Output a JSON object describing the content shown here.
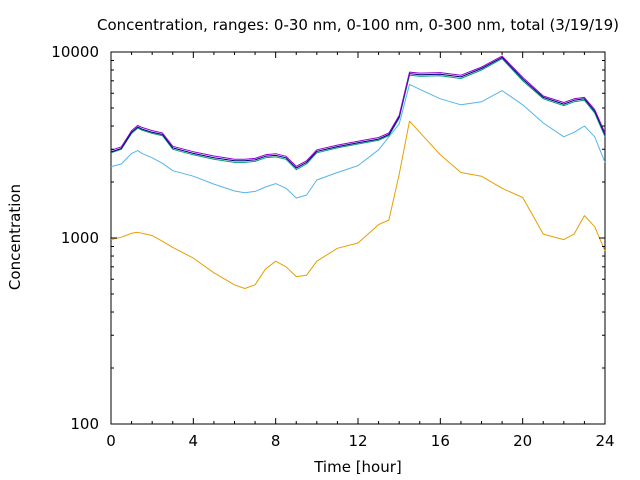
{
  "chart_data": {
    "type": "line",
    "title": "Concentration, ranges: 0-30 nm, 0-100 nm, 0-300 nm, total (3/19/19)",
    "xlabel": "Time [hour]",
    "ylabel": "Concentration",
    "xlim": [
      0,
      24
    ],
    "ylim": [
      100,
      10000
    ],
    "yscale": "log",
    "xticks": [
      0,
      4,
      8,
      12,
      16,
      20,
      24
    ],
    "xtick_labels": [
      "0",
      "4",
      "8",
      "12",
      "16",
      "20",
      "24"
    ],
    "yticks": [
      100,
      1000,
      10000
    ],
    "ytick_labels": [
      "100",
      "1000",
      "10000"
    ],
    "grid": false,
    "legend": "none",
    "x": [
      0,
      0.5,
      1,
      1.3,
      1.5,
      2,
      2.5,
      3,
      4,
      5,
      6,
      6.5,
      7,
      7.5,
      8,
      8.5,
      9,
      9.5,
      10,
      11,
      12,
      13,
      13.5,
      14,
      14.5,
      15,
      16,
      17,
      18,
      19,
      20,
      21,
      22,
      22.5,
      23,
      23.5,
      24
    ],
    "series": [
      {
        "color": "#e69f00",
        "values": [
          980,
          1010,
          1060,
          1075,
          1060,
          1030,
          960,
          890,
          780,
          650,
          560,
          535,
          560,
          680,
          750,
          700,
          620,
          630,
          750,
          880,
          940,
          1180,
          1250,
          2200,
          4250,
          3700,
          2800,
          2250,
          2150,
          1850,
          1650,
          1050,
          980,
          1050,
          1320,
          1150,
          850
        ]
      },
      {
        "color": "#56b4e9",
        "values": [
          2420,
          2500,
          2850,
          2950,
          2850,
          2700,
          2520,
          2300,
          2150,
          1950,
          1790,
          1750,
          1780,
          1880,
          1960,
          1850,
          1640,
          1700,
          2050,
          2250,
          2450,
          2980,
          3500,
          4100,
          6700,
          6300,
          5600,
          5200,
          5400,
          6200,
          5200,
          4150,
          3500,
          3700,
          4000,
          3500,
          2550
        ]
      },
      {
        "color": "#009e73",
        "values": [
          2870,
          3000,
          3650,
          3900,
          3800,
          3650,
          3550,
          3000,
          2800,
          2650,
          2550,
          2550,
          2580,
          2700,
          2730,
          2650,
          2330,
          2500,
          2870,
          3050,
          3200,
          3350,
          3550,
          4400,
          7500,
          7400,
          7450,
          7200,
          8000,
          9200,
          7000,
          5600,
          5150,
          5400,
          5500,
          4700,
          3500
        ]
      },
      {
        "color": "#000080",
        "values": [
          2900,
          3030,
          3700,
          3950,
          3850,
          3700,
          3600,
          3050,
          2850,
          2700,
          2600,
          2600,
          2630,
          2750,
          2780,
          2700,
          2380,
          2550,
          2920,
          3100,
          3250,
          3400,
          3600,
          4480,
          7650,
          7550,
          7600,
          7350,
          8150,
          9350,
          7150,
          5700,
          5250,
          5500,
          5600,
          4800,
          3600
        ]
      },
      {
        "color": "#9400d3",
        "values": [
          2960,
          3090,
          3780,
          4030,
          3930,
          3780,
          3670,
          3110,
          2910,
          2760,
          2650,
          2650,
          2680,
          2800,
          2840,
          2750,
          2430,
          2600,
          2980,
          3160,
          3310,
          3470,
          3670,
          4560,
          7800,
          7700,
          7750,
          7500,
          8300,
          9500,
          7300,
          5800,
          5350,
          5600,
          5700,
          4900,
          3670
        ]
      }
    ]
  }
}
